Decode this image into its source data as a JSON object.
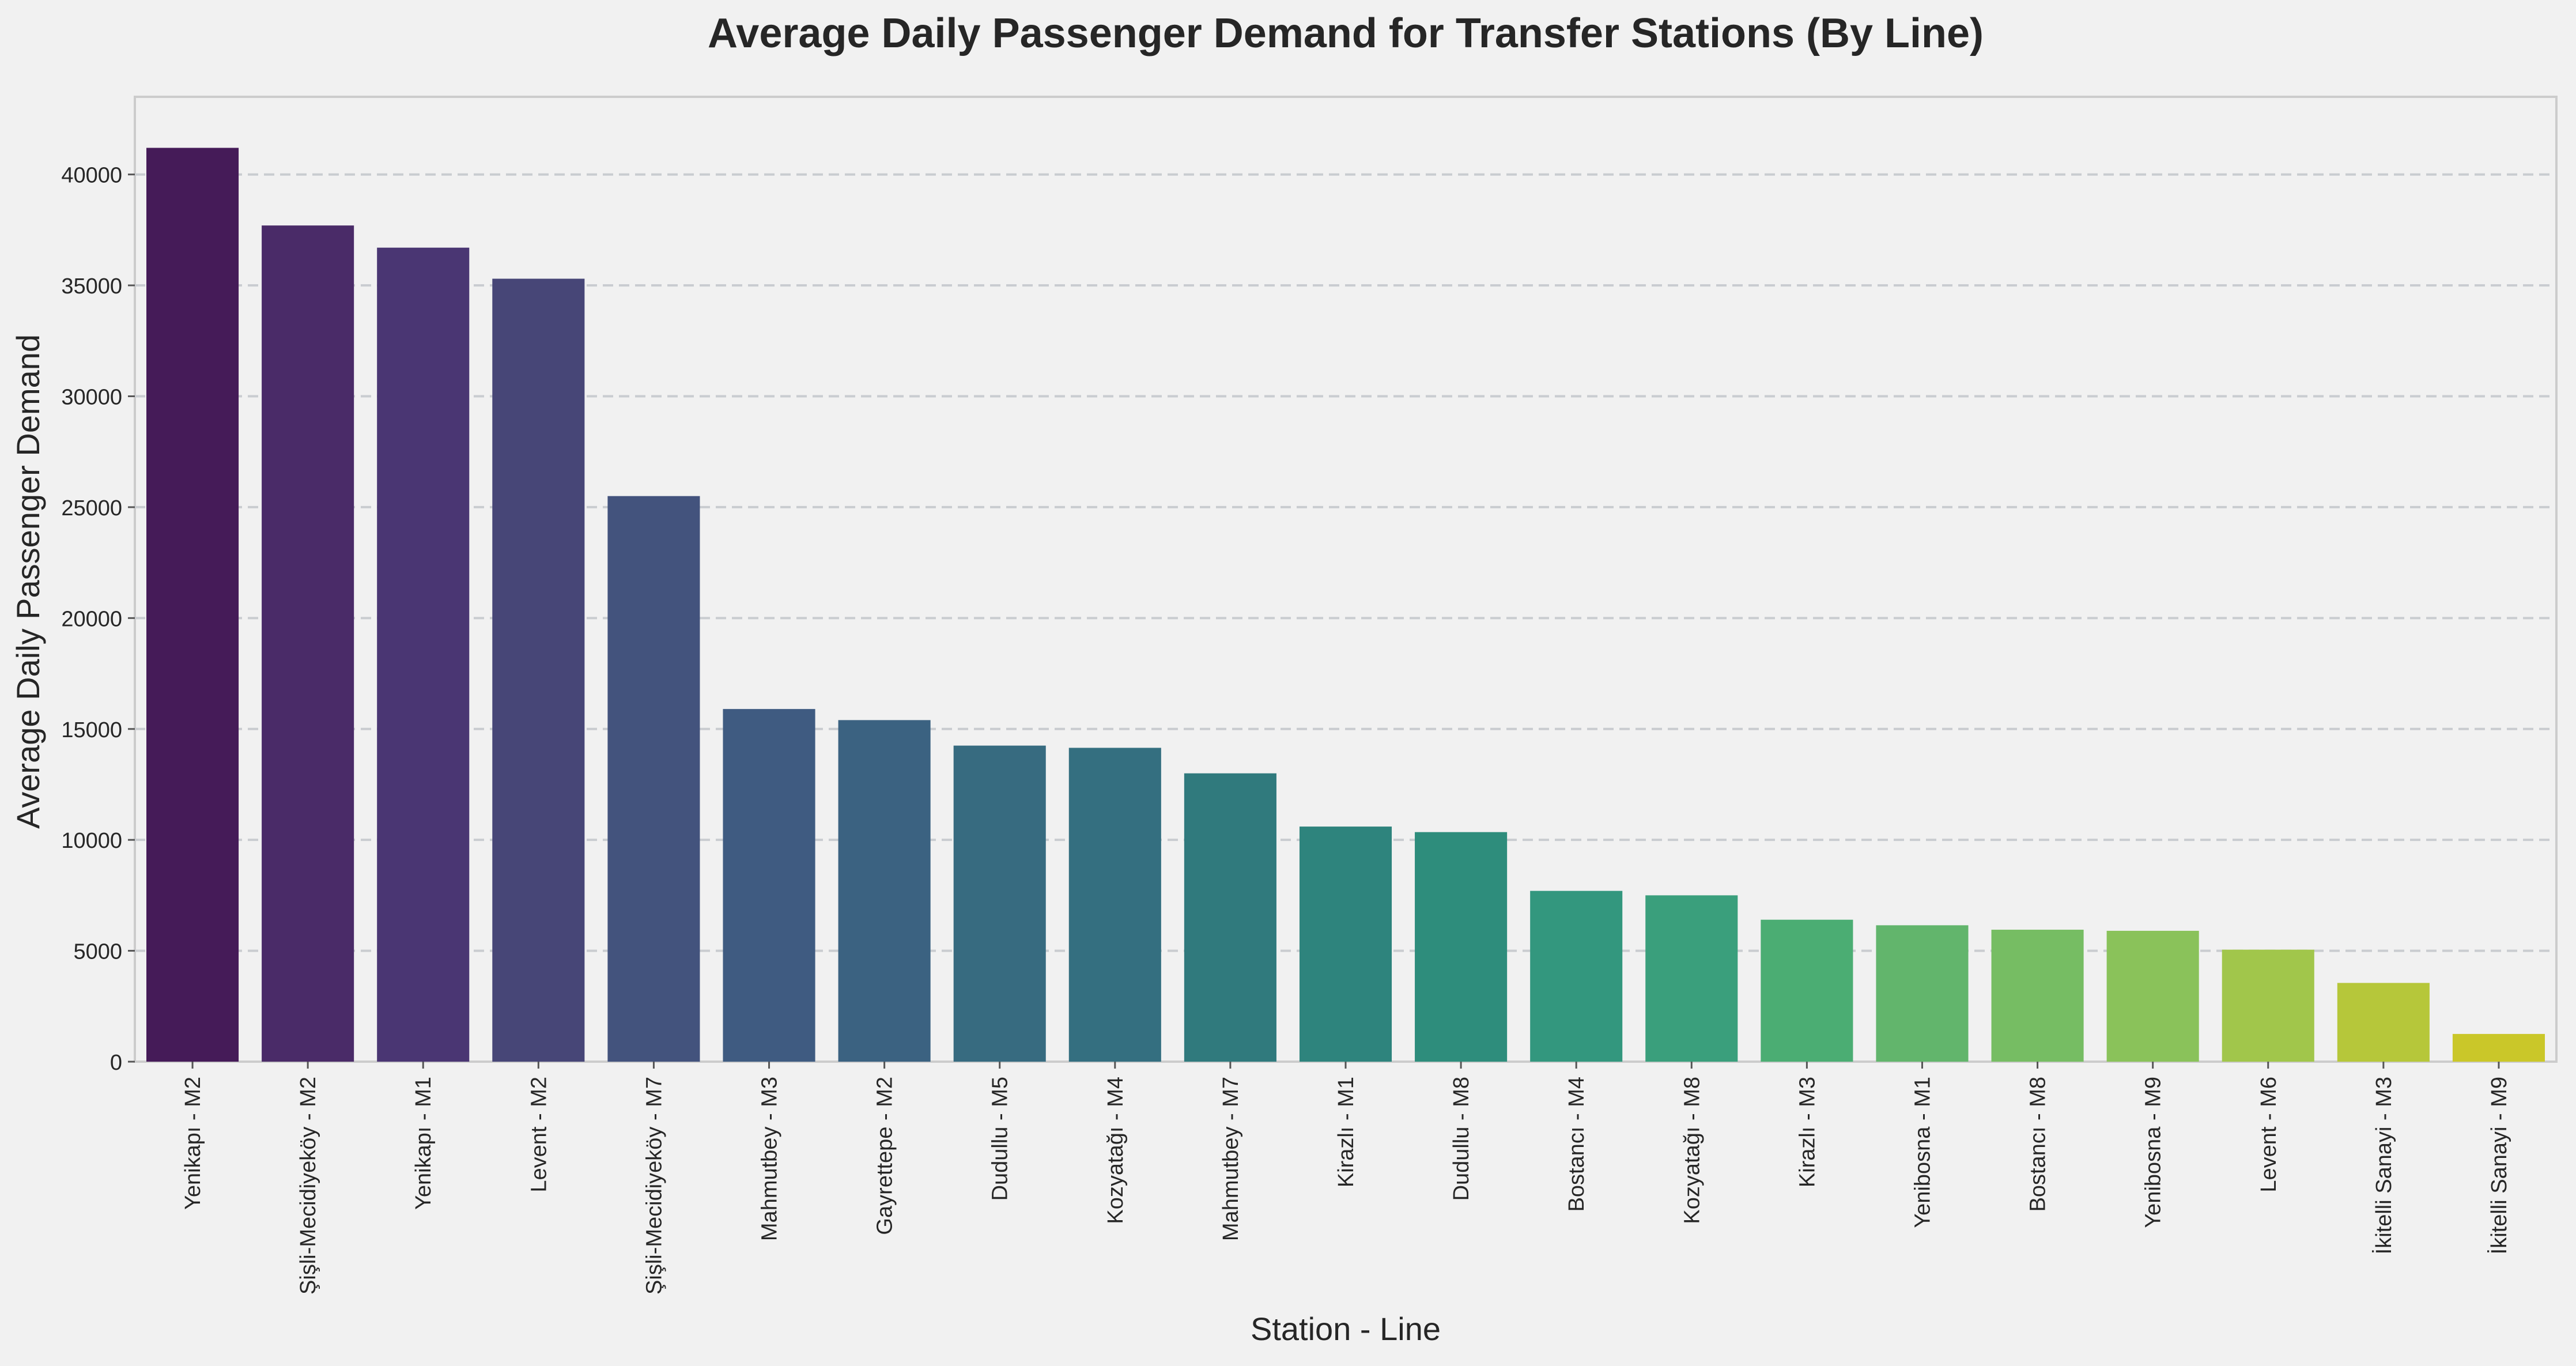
{
  "chart_data": {
    "type": "bar",
    "title": "Average Daily Passenger Demand for Transfer Stations (By Line)",
    "xlabel": "Station - Line",
    "ylabel": "Average Daily Passenger Demand",
    "ylim": [
      0,
      43500
    ],
    "yticks": [
      0,
      5000,
      10000,
      15000,
      20000,
      25000,
      30000,
      35000,
      40000
    ],
    "grid": "y-dashed",
    "categories": [
      "Yenikapı - M2",
      "Şişli-Mecidiyeköy - M2",
      "Yenikapı - M1",
      "Levent - M2",
      "Şişli-Mecidiyeköy - M7",
      "Mahmutbey - M3",
      "Gayrettepe - M2",
      "Dudullu - M5",
      "Kozyatağı - M4",
      "Mahmutbey - M7",
      "Kirazlı - M1",
      "Dudullu - M8",
      "Bostancı - M4",
      "Kozyatağı - M8",
      "Kirazlı - M3",
      "Yenibosna - M1",
      "Bostancı - M8",
      "Yenibosna - M9",
      "Levent - M6",
      "İkitelli Sanayi - M3",
      "İkitelli Sanayi - M9"
    ],
    "values": [
      41200,
      37700,
      36700,
      35300,
      25500,
      15900,
      15400,
      14250,
      14150,
      13000,
      10600,
      10350,
      7700,
      7500,
      6400,
      6150,
      5950,
      5900,
      5050,
      3550,
      1250
    ],
    "colors": [
      "#451b58",
      "#4a2b68",
      "#4a3673",
      "#474677",
      "#43537d",
      "#3f5b81",
      "#3b6281",
      "#376b80",
      "#346f80",
      "#307a7d",
      "#2e847d",
      "#2e8d7c",
      "#33977e",
      "#3a9f7c",
      "#4bad73",
      "#62b56c",
      "#76bd63",
      "#8ac25a",
      "#a1c64b",
      "#b6c73a",
      "#cac729"
    ]
  }
}
